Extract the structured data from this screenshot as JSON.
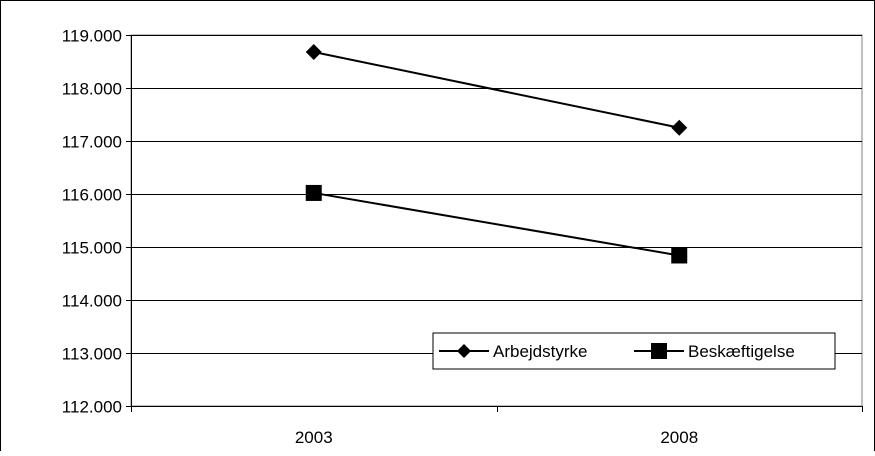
{
  "chart_data": {
    "type": "line",
    "title": "",
    "xlabel": "",
    "ylabel": "",
    "categories": [
      "2003",
      "2008"
    ],
    "ylim": [
      112000,
      119000
    ],
    "yticks": [
      112000,
      113000,
      114000,
      115000,
      116000,
      117000,
      118000,
      119000
    ],
    "ytick_labels": [
      "112.000",
      "113.000",
      "114.000",
      "115.000",
      "116.000",
      "117.000",
      "118.000",
      "119.000"
    ],
    "grid": "horizontal",
    "legend_position": "bottom-right",
    "series": [
      {
        "name": "Arbejdstyrke",
        "marker": "diamond",
        "color": "#000000",
        "values": [
          118680,
          117250
        ]
      },
      {
        "name": "Beskæftigelse",
        "marker": "square",
        "color": "#000000",
        "values": [
          116020,
          114840
        ]
      }
    ]
  }
}
